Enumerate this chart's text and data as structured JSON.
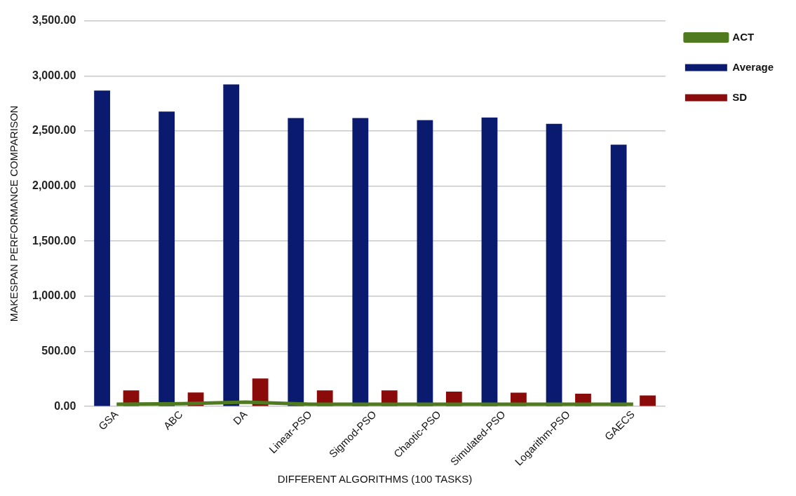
{
  "chart_data": {
    "type": "bar",
    "xlabel": "DIFFERENT ALGORITHMS (100 TASKS)",
    "ylabel": "MAKESPAN PERFORMANCE COMPARISON",
    "categories": [
      "GSA",
      "ABC",
      "DA",
      "Linear-PSO",
      "Sigmod-PSO",
      "Chaotic-PSO",
      "Simulated-PSO",
      "Logarithm-PSO",
      "GAECS"
    ],
    "series": [
      {
        "name": "Average",
        "color": "#0a1a6e",
        "values": [
          2866,
          2676,
          2922,
          2617,
          2617,
          2598,
          2622,
          2564,
          2376
        ]
      },
      {
        "name": "SD",
        "color": "#8b0a0a",
        "values": [
          146,
          127,
          254,
          146,
          146,
          135,
          125,
          115,
          100
        ]
      },
      {
        "name": "ACT",
        "type": "line",
        "color": "#4f7a1f",
        "values": [
          20,
          25,
          40,
          20,
          20,
          20,
          20,
          20,
          20
        ]
      }
    ],
    "ylim": [
      0,
      3500
    ],
    "yticks": [
      {
        "value": 0,
        "label": "0.00"
      },
      {
        "value": 500,
        "label": "500.00"
      },
      {
        "value": 1000,
        "label": "1,000.00"
      },
      {
        "value": 1500,
        "label": "1,500.00"
      },
      {
        "value": 2000,
        "label": "2,000.00"
      },
      {
        "value": 2500,
        "label": "2,500.00"
      },
      {
        "value": 3000,
        "label": "3,000.00"
      },
      {
        "value": 3500,
        "label": "3,500.00"
      }
    ],
    "grid": "y",
    "legend": "top right",
    "marker": "none"
  }
}
